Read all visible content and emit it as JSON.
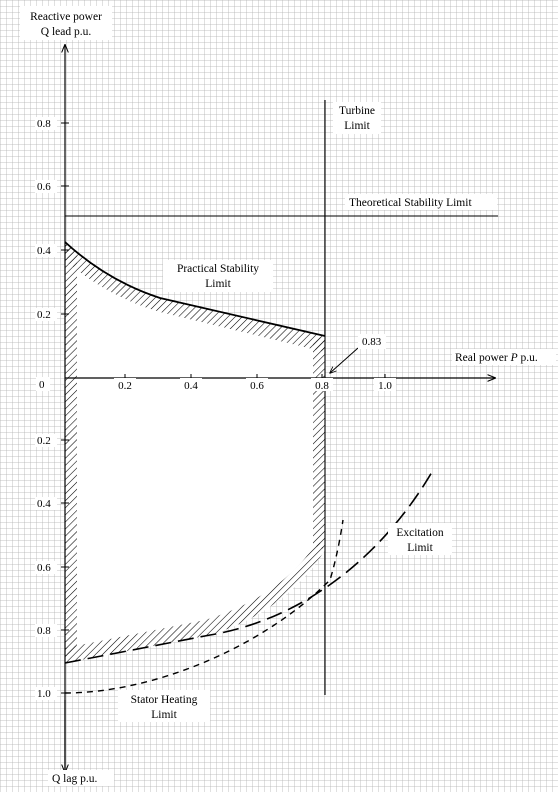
{
  "axes": {
    "y_top_label_line1": "Reactive power",
    "y_top_label_line2": "Q lead p.u.",
    "y_bottom_label": "Q lag p.u.",
    "x_label_prefix": "Real power ",
    "x_label_var": "P",
    "x_label_suffix": " p.u.",
    "origin_label": "0",
    "x_ticks": [
      "0.2",
      "0.4",
      "0.6",
      "0.8",
      "1.0"
    ],
    "y_lead_ticks": [
      "0.8",
      "0.6",
      "0.4",
      "0.2"
    ],
    "y_lag_ticks": [
      "0.2",
      "0.4",
      "0.6",
      "0.8",
      "1.0"
    ]
  },
  "labels": {
    "turbine_line1": "Turbine",
    "turbine_line2": "Limit",
    "theoretical": "Theoretical Stability Limit",
    "practical_line1": "Practical Stability",
    "practical_line2": "Limit",
    "marker_value": "0.83",
    "excitation_line1": "Excitation",
    "excitation_line2": "Limit",
    "stator_line1": "Stator Heating",
    "stator_line2": "Limit"
  },
  "values": {
    "turbine_limit_p": 0.83,
    "theoretical_stability_q": 0.5
  },
  "colors": {
    "grid": "#b0b0b0",
    "ink": "#000000",
    "background": "#ffffff"
  }
}
